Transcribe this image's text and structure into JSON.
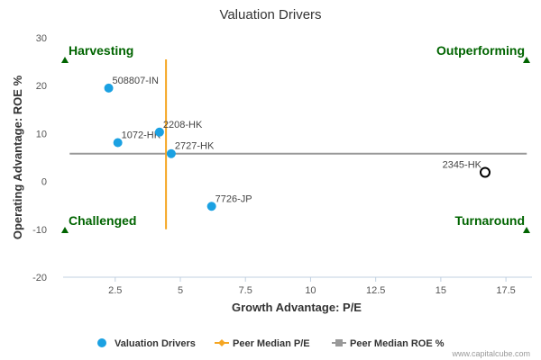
{
  "chart_data": {
    "type": "scatter",
    "title": "Valuation Drivers",
    "xlabel": "Growth Advantage: P/E",
    "ylabel": "Operating Advantage: ROE %",
    "xlim": [
      0.5,
      18.5
    ],
    "ylim": [
      -20,
      30
    ],
    "x_ticks": [
      2.5,
      5,
      7.5,
      10,
      12.5,
      15,
      17.5
    ],
    "x_tick_labels": [
      "2.5",
      "5",
      "7.5",
      "10",
      "12.5",
      "15",
      "17.5"
    ],
    "y_ticks": [
      -20,
      -10,
      0,
      10,
      20,
      30
    ],
    "y_tick_labels": [
      "-20",
      "-10",
      "0",
      "10",
      "20",
      "30"
    ],
    "points": [
      {
        "label": "508807-IN",
        "x": 2.25,
        "y": 19.5,
        "style": "filled"
      },
      {
        "label": "1072-HK",
        "x": 2.6,
        "y": 8.1,
        "style": "filled"
      },
      {
        "label": "2208-HK",
        "x": 4.2,
        "y": 10.3,
        "style": "filled"
      },
      {
        "label": "2727-HK",
        "x": 4.65,
        "y": 5.8,
        "style": "filled"
      },
      {
        "label": "7726-JP",
        "x": 6.2,
        "y": -5.2,
        "style": "filled"
      },
      {
        "label": "2345-HK",
        "x": 16.7,
        "y": 1.9,
        "style": "hollow"
      }
    ],
    "peer_median_pe": {
      "x": 4.45,
      "y_range": [
        -10,
        25.5
      ]
    },
    "peer_median_roe": {
      "y": 5.8,
      "x_range": [
        0.75,
        18.3
      ]
    },
    "quadrants": [
      {
        "label": "Harvesting",
        "position": "top-left"
      },
      {
        "label": "Outperforming",
        "position": "top-right"
      },
      {
        "label": "Challenged",
        "position": "bottom-left"
      },
      {
        "label": "Turnaround",
        "position": "bottom-right"
      }
    ],
    "legend": [
      {
        "label": "Valuation Drivers",
        "kind": "dot"
      },
      {
        "label": "Peer Median P/E",
        "kind": "line-diamond"
      },
      {
        "label": "Peer Median ROE %",
        "kind": "line-square"
      }
    ],
    "colors": {
      "point": "#1ba1e2",
      "hollow_stroke": "#000000",
      "pe_line": "#f5a623",
      "roe_line": "#999999",
      "quadrant_text": "#006400",
      "quadrant_marker": "#006400"
    }
  },
  "credit": "www.capitalcube.com"
}
